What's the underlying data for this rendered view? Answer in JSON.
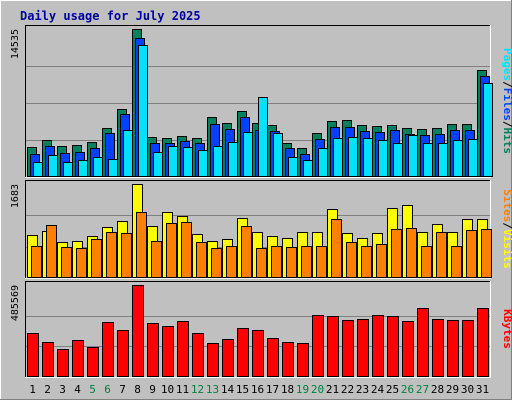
{
  "chart_data": {
    "type": "bar",
    "title": "Daily usage for July 2025",
    "colors": {
      "background": "#c0c0c0",
      "title": "#0000a0",
      "weekend_label": "#008040",
      "weekday_label": "#000000",
      "hits": "#00805c",
      "files": "#0040ff",
      "pages": "#00e0ff",
      "visits": "#ffff00",
      "sites": "#ff8000",
      "kbytes": "#ff0000",
      "separator_slash": "#000000"
    },
    "days": [
      "1",
      "2",
      "3",
      "4",
      "5",
      "6",
      "7",
      "8",
      "9",
      "10",
      "11",
      "12",
      "13",
      "14",
      "15",
      "16",
      "17",
      "18",
      "19",
      "20",
      "21",
      "22",
      "23",
      "24",
      "25",
      "26",
      "27",
      "28",
      "29",
      "30",
      "31"
    ],
    "weekend_days": [
      "5",
      "6",
      "12",
      "13",
      "19",
      "20",
      "26",
      "27"
    ],
    "panels": [
      {
        "id": "hits-files-pages",
        "ymax_label": "14535",
        "ylim": [
          0,
          14535
        ],
        "legend": [
          "Pages",
          "/",
          "Files",
          "/",
          "Hits"
        ],
        "series": [
          {
            "name": "Hits",
            "color_key": "hits",
            "values": [
              2900,
              3600,
              3000,
              3100,
              3400,
              4800,
              6700,
              14535,
              3900,
              3800,
              4000,
              3800,
              5900,
              5300,
              6500,
              5300,
              5100,
              3300,
              2800,
              4300,
              5500,
              5600,
              5100,
              5000,
              5100,
              4800,
              4700,
              4800,
              5200,
              5200,
              10500
            ]
          },
          {
            "name": "Files",
            "color_key": "files",
            "values": [
              2300,
              3000,
              2400,
              2500,
              2800,
              4300,
              6200,
              13700,
              3300,
              3300,
              3500,
              3300,
              5200,
              4700,
              5900,
              4600,
              4500,
              2800,
              2300,
              3700,
              4900,
              4900,
              4500,
              4400,
              4600,
              4200,
              4100,
              4200,
              4600,
              4600,
              9900
            ]
          },
          {
            "name": "Pages",
            "color_key": "pages",
            "values": [
              1500,
              2200,
              1500,
              1700,
              2000,
              1800,
              4600,
              13000,
              2500,
              3000,
              2900,
              2700,
              3000,
              3400,
              4400,
              7900,
              4300,
              2000,
              1700,
              2800,
              3800,
              3900,
              3800,
              3600,
              3300,
              4100,
              3300,
              3300,
              3600,
              3700,
              9200
            ]
          }
        ]
      },
      {
        "id": "visits-sites",
        "ymax_label": "1683",
        "ylim": [
          0,
          1683
        ],
        "legend": [
          "Sites",
          "/",
          "Visits"
        ],
        "series": [
          {
            "name": "Visits",
            "color_key": "visits",
            "values": [
              770,
              850,
              640,
              660,
              760,
              920,
              1020,
              1683,
              930,
              1180,
              1110,
              780,
              670,
              700,
              1070,
              820,
              750,
              720,
              830,
              830,
              1230,
              800,
              710,
              800,
              1260,
              1310,
              830,
              970,
              820,
              1050,
              1050
            ]
          },
          {
            "name": "Sites",
            "color_key": "sites",
            "values": [
              570,
              940,
              550,
              540,
              700,
              830,
              800,
              1190,
              660,
              990,
              1000,
              650,
              530,
              580,
              930,
              540,
              580,
              560,
              570,
              580,
              1050,
              640,
              570,
              600,
              870,
              890,
              580,
              830,
              570,
              860,
              870
            ]
          }
        ]
      },
      {
        "id": "kbytes",
        "ymax_label": "485569",
        "ylim": [
          0,
          485569
        ],
        "legend": [
          "KBytes"
        ],
        "series": [
          {
            "name": "KBytes",
            "color_key": "kbytes",
            "values": [
              230000,
              185000,
              150000,
              195000,
              160000,
              290000,
              250000,
              485569,
              285000,
              270000,
              295000,
              230000,
              180000,
              200000,
              260000,
              250000,
              205000,
              185000,
              180000,
              325000,
              320000,
              300000,
              305000,
              325000,
              320000,
              295000,
              365000,
              305000,
              300000,
              300000,
              365000
            ]
          }
        ]
      }
    ]
  }
}
